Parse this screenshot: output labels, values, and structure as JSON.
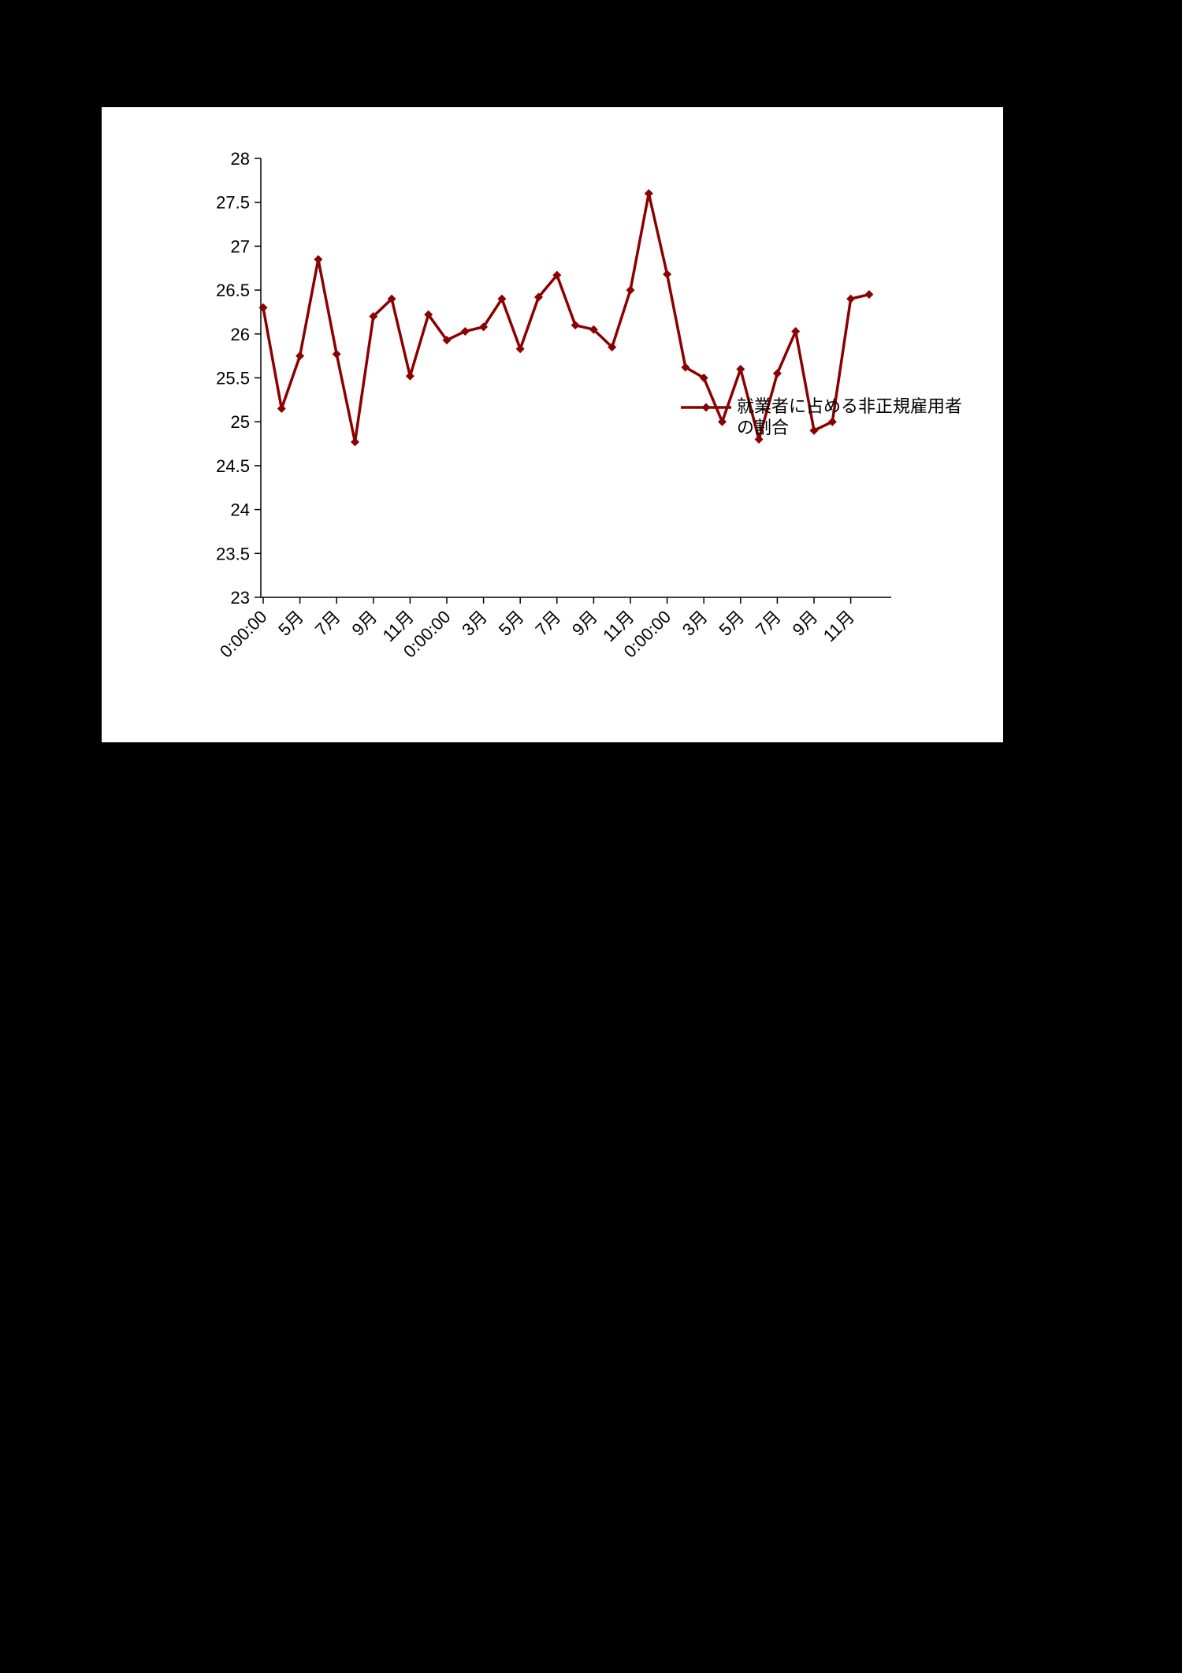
{
  "page": {
    "background_color": "#000000",
    "chart_background_color": "#ffffff"
  },
  "chart_data": {
    "type": "line",
    "title": "",
    "xlabel": "",
    "ylabel": "",
    "ylim": [
      23,
      28
    ],
    "y_ticks": [
      "28",
      "27.5",
      "27",
      "26.5",
      "26",
      "25.5",
      "25",
      "24.5",
      "24",
      "23.5",
      "23"
    ],
    "grid": false,
    "marker": "diamond",
    "axis_color": "#000000",
    "legend_position": "middle-right",
    "legend": {
      "line1": "就業者に占める非正規雇用者",
      "line2": "の割合"
    },
    "series": [
      {
        "name": "就業者に占める非正規雇用者の割合",
        "color": "#8B0000",
        "values": [
          26.3,
          25.15,
          25.75,
          26.85,
          25.77,
          24.77,
          26.2,
          26.4,
          25.52,
          26.22,
          25.93,
          26.03,
          26.08,
          26.4,
          25.83,
          26.42,
          26.67,
          26.1,
          26.05,
          25.85,
          26.5,
          27.6,
          26.68,
          25.62,
          25.5,
          25.0,
          25.6,
          24.8,
          25.55,
          26.03,
          24.9,
          25.0,
          26.4,
          26.45
        ]
      }
    ],
    "n_points": 34,
    "x_tick_labels": [
      {
        "i": 0,
        "t": "0:00:00"
      },
      {
        "i": 2,
        "t": "5月"
      },
      {
        "i": 4,
        "t": "7月"
      },
      {
        "i": 6,
        "t": "9月"
      },
      {
        "i": 8,
        "t": "11月"
      },
      {
        "i": 10,
        "t": "0:00:00"
      },
      {
        "i": 12,
        "t": "3月"
      },
      {
        "i": 14,
        "t": "5月"
      },
      {
        "i": 16,
        "t": "7月"
      },
      {
        "i": 18,
        "t": "9月"
      },
      {
        "i": 20,
        "t": "11月"
      },
      {
        "i": 22,
        "t": "0:00:00"
      },
      {
        "i": 24,
        "t": "3月"
      },
      {
        "i": 26,
        "t": "5月"
      },
      {
        "i": 28,
        "t": "7月"
      },
      {
        "i": 30,
        "t": "9月"
      },
      {
        "i": 32,
        "t": "11月"
      }
    ]
  }
}
